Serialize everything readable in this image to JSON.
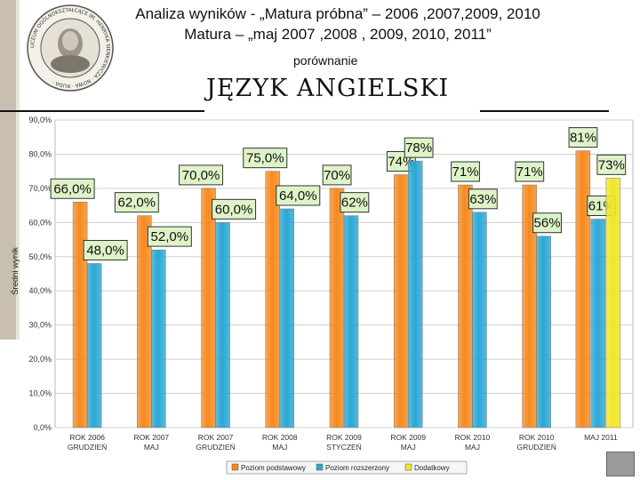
{
  "header": {
    "line1": "Analiza wyników  - „Matura próbna” – 2006 ,2007,2009, 2010",
    "line2": "Matura – „maj 2007 ,2008 , 2009, 2010, 2011”",
    "subtitle": "porównanie",
    "subject": "JĘZYK ANGIELSKI"
  },
  "logo": {
    "description_icon": "school-seal-icon",
    "text": "LICEUM OGÓLNOKSZTAŁCĄCE IM. HENRYKA SIENKIEWICZA · NOWA · RUDA ·"
  },
  "colors": {
    "basic": "#f58a1f",
    "extended": "#2aa8d4",
    "additional": "#f2e626",
    "label_bg": "#dff3c8"
  },
  "chart_data": {
    "type": "bar",
    "ylabel": "Średni wynik",
    "ylim": [
      0,
      90
    ],
    "yticks": [
      "0,0%",
      "10,0%",
      "20,0%",
      "30,0%",
      "40,0%",
      "50,0%",
      "60,0%",
      "70,0%",
      "80,0%",
      "90,0%"
    ],
    "categories": [
      [
        "ROK 2006",
        "GRUDZIEŃ"
      ],
      [
        "ROK 2007",
        "MAJ"
      ],
      [
        "ROK 2007",
        "GRUDZIEŃ"
      ],
      [
        "ROK 2008",
        "MAJ"
      ],
      [
        "ROK 2009",
        "STYCZEŃ"
      ],
      [
        "ROK 2009",
        "MAJ"
      ],
      [
        "ROK 2010",
        "MAJ"
      ],
      [
        "ROK 2010",
        "GRUDZIEŃ"
      ],
      [
        "MAJ 2011",
        ""
      ]
    ],
    "series": [
      {
        "name": "Poziom podstawowy",
        "values": [
          66,
          62,
          70,
          75,
          70,
          74,
          71,
          71,
          81
        ],
        "labels": [
          "66,0%",
          "62,0%",
          "70,0%",
          "75,0%",
          "70%",
          "74%",
          "71%",
          "71%",
          "81%"
        ]
      },
      {
        "name": "Poziom rozszerzony",
        "values": [
          48,
          52,
          60,
          64,
          62,
          78,
          63,
          56,
          61
        ],
        "labels": [
          "48,0%",
          "52,0%",
          "60,0%",
          "64,0%",
          "62%",
          "78%",
          "63%",
          "56%",
          "61%"
        ]
      },
      {
        "name": "Dodatkowy",
        "values": [
          null,
          null,
          null,
          null,
          null,
          null,
          null,
          null,
          73
        ],
        "labels": [
          "",
          "",
          "",
          "",
          "",
          "",
          "",
          "",
          "73%"
        ]
      }
    ],
    "legend": [
      "Poziom podstawowy",
      "Poziom rozszerzony",
      "Dodatkowy"
    ]
  }
}
